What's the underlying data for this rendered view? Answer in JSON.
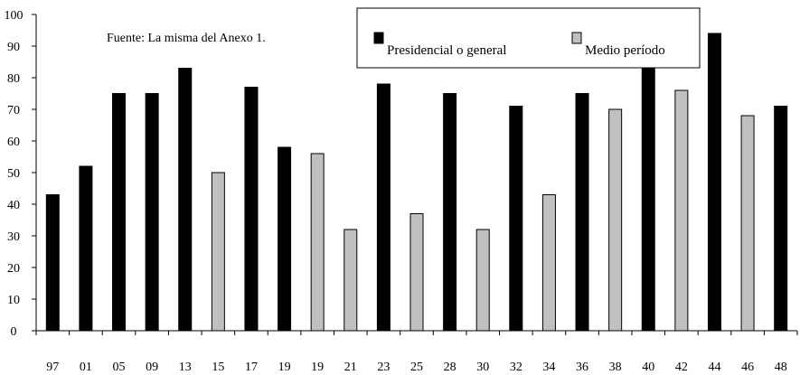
{
  "chart_data": {
    "type": "bar",
    "title": "",
    "xlabel": "",
    "ylabel": "",
    "ylim": [
      0,
      100
    ],
    "yticks": [
      0,
      10,
      20,
      30,
      40,
      50,
      60,
      70,
      80,
      90,
      100
    ],
    "grid": false,
    "legend_position": "top-right",
    "annotation": "Fuente: La misma del Anexo 1.",
    "x_labels": [
      "97",
      "01",
      "05",
      "09",
      "13",
      "15",
      "17",
      "19",
      "19",
      "21",
      "23",
      "25",
      "28",
      "30",
      "32",
      "34",
      "36",
      "38",
      "40",
      "42",
      "44",
      "46",
      "48"
    ],
    "series": [
      {
        "name": "Presidencial o general",
        "color": "#000000",
        "points": [
          {
            "x": "97",
            "y": 43
          },
          {
            "x": "01",
            "y": 52
          },
          {
            "x": "05",
            "y": 75
          },
          {
            "x": "09",
            "y": 75
          },
          {
            "x": "13",
            "y": 83
          },
          {
            "x": "17",
            "y": 77
          },
          {
            "x": "19",
            "y": 58
          },
          {
            "x": "23",
            "y": 78
          },
          {
            "x": "28",
            "y": 75
          },
          {
            "x": "32",
            "y": 71
          },
          {
            "x": "36",
            "y": 75
          },
          {
            "x": "40",
            "y": 88
          },
          {
            "x": "44",
            "y": 94
          },
          {
            "x": "48",
            "y": 71
          }
        ]
      },
      {
        "name": "Medio período",
        "color": "#c0c0c0",
        "points": [
          {
            "x": "15",
            "y": 50
          },
          {
            "x": "19",
            "y": 56
          },
          {
            "x": "21",
            "y": 32
          },
          {
            "x": "25",
            "y": 37
          },
          {
            "x": "30",
            "y": 32
          },
          {
            "x": "34",
            "y": 43
          },
          {
            "x": "38",
            "y": 70
          },
          {
            "x": "42",
            "y": 76
          },
          {
            "x": "46",
            "y": 68
          }
        ]
      }
    ]
  }
}
